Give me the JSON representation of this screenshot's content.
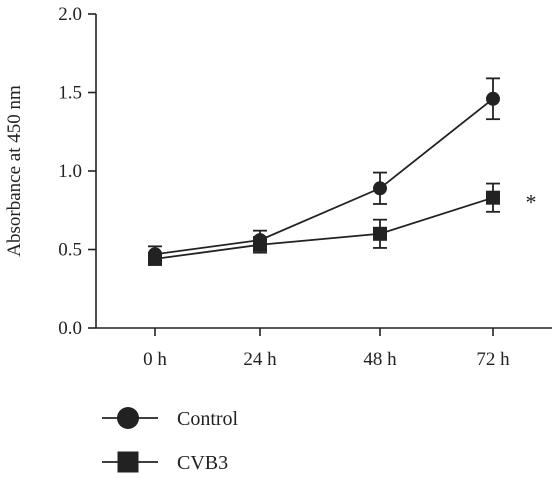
{
  "chart_data": {
    "type": "line",
    "title": "",
    "xlabel": "",
    "ylabel": "Absorbance at 450 nm",
    "categories": [
      "0 h",
      "24 h",
      "48 h",
      "72 h"
    ],
    "ylim": [
      0,
      2.0
    ],
    "yticks": [
      "0.0",
      "0.5",
      "1.0",
      "1.5",
      "2.0"
    ],
    "grid": false,
    "legend_position": "bottom-left",
    "series": [
      {
        "name": "Control",
        "marker": "circle",
        "color": "#222222",
        "values": [
          0.47,
          0.56,
          0.89,
          1.46
        ],
        "errors": [
          0.05,
          0.06,
          0.1,
          0.13
        ]
      },
      {
        "name": "CVB3",
        "marker": "square",
        "color": "#222222",
        "values": [
          0.44,
          0.53,
          0.6,
          0.83
        ],
        "errors": [
          0.03,
          0.05,
          0.09,
          0.09
        ]
      }
    ],
    "annotations": [
      {
        "text": "*",
        "series": "CVB3",
        "category": "72 h"
      }
    ]
  }
}
